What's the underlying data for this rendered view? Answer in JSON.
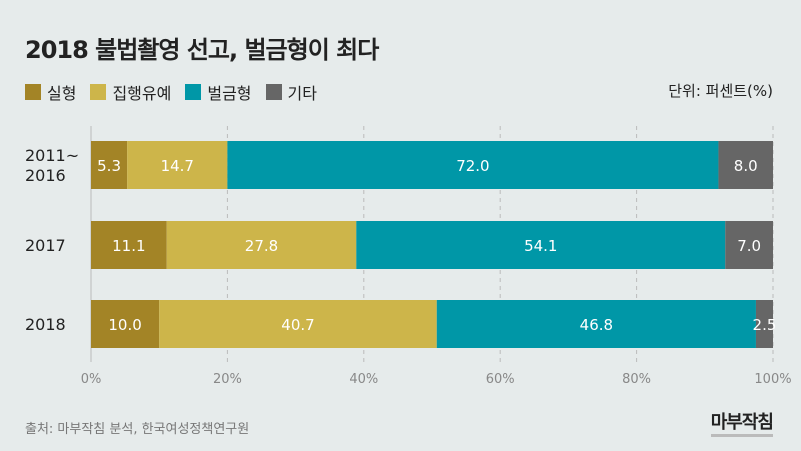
{
  "title": "2018 불법촬영 선고, 벌금형이 최다",
  "unit_label": "단위: 퍼센트(%)",
  "source": "출처: 마부작침 분석, 한국여성정책연구원",
  "logo_text": "마부작침",
  "chart_data": {
    "type": "bar",
    "orientation": "horizontal",
    "stacked": true,
    "categories": [
      [
        "2011~",
        "2016"
      ],
      [
        "2017"
      ],
      [
        "2018"
      ]
    ],
    "series": [
      {
        "name": "실형",
        "color": "#a38426",
        "values": [
          5.3,
          11.1,
          10.0
        ]
      },
      {
        "name": "집행유예",
        "color": "#cdb54a",
        "values": [
          14.7,
          27.8,
          40.7
        ]
      },
      {
        "name": "벌금형",
        "color": "#0097a7",
        "values": [
          72.0,
          54.1,
          46.8
        ]
      },
      {
        "name": "기타",
        "color": "#666666",
        "values": [
          8.0,
          7.0,
          2.5
        ]
      }
    ],
    "xlim": [
      0,
      100
    ],
    "xticks": [
      "0%",
      "20%",
      "40%",
      "60%",
      "80%",
      "100%"
    ],
    "grid": true,
    "legend": "top-left"
  }
}
